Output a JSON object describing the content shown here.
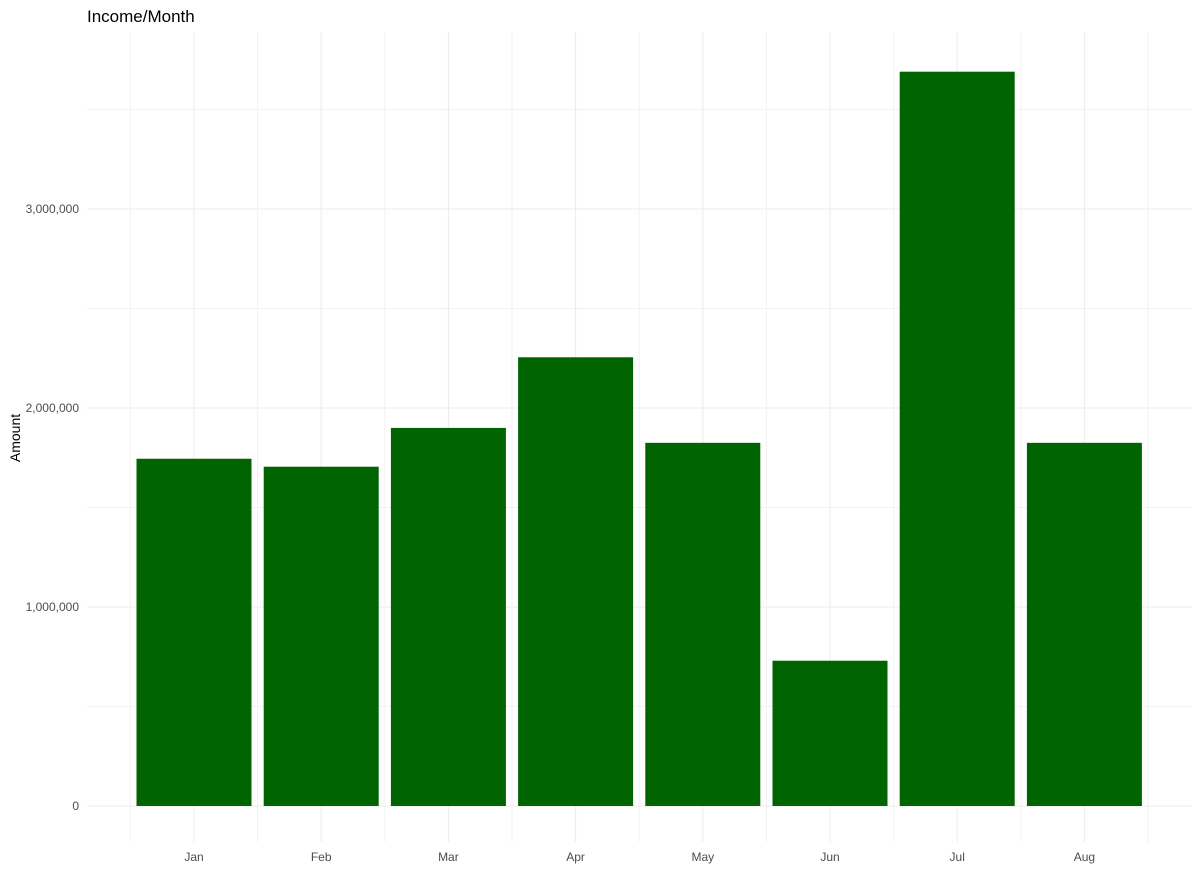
{
  "chart_data": {
    "type": "bar",
    "title": "Income/Month",
    "xlabel": "",
    "ylabel": "Amount",
    "categories": [
      "Jan",
      "Feb",
      "Mar",
      "Apr",
      "May",
      "Jun",
      "Jul",
      "Aug"
    ],
    "values": [
      1745000,
      1705000,
      1900000,
      2255000,
      1825000,
      730000,
      3690000,
      1825000
    ],
    "ylim": [
      0,
      3700000
    ],
    "yticks": [
      0,
      1000000,
      2000000,
      3000000
    ],
    "ytick_labels": [
      "0",
      "1,000,000",
      "2,000,000",
      "3,000,000"
    ],
    "grid": true,
    "legend": "none",
    "bar_color": "#006400"
  }
}
